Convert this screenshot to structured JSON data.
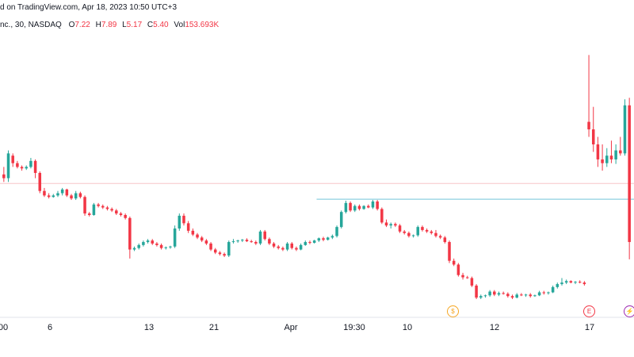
{
  "header": {
    "attribution": "d on TradingView.com, Apr 18, 2023 10:50 UTC+3",
    "symbol": "nc., 30, NASDAQ",
    "open_label": "O",
    "open": "7.22",
    "high_label": "H",
    "high": "7.89",
    "low_label": "L",
    "low": "5.17",
    "close_label": "C",
    "close": "5.40",
    "vol_label": "Vol",
    "volume": "153.693K"
  },
  "colors": {
    "up": "#26a69a",
    "down": "#f23645",
    "price_line": "#f7c5c9",
    "level_line": "#8ed0e0",
    "axis_border": "#e0e3eb"
  },
  "x_axis_labels": [
    "00",
    "6",
    "13",
    "21",
    "Apr",
    "19:30",
    "10",
    "12",
    "17"
  ],
  "events": [
    {
      "icon": "dollar-icon",
      "glyph": "$",
      "color": "#f5a623"
    },
    {
      "icon": "earnings-icon",
      "glyph": "E",
      "color": "#f23645"
    },
    {
      "icon": "lightning-icon",
      "glyph": "⚡",
      "color": "#9c27b0"
    }
  ],
  "chart_data": {
    "type": "candlestick",
    "candles": [
      [
        6.3,
        6.4,
        6.2,
        6.25
      ],
      [
        6.25,
        6.62,
        6.2,
        6.58
      ],
      [
        6.55,
        6.58,
        6.4,
        6.45
      ],
      [
        6.45,
        6.48,
        6.38,
        6.4
      ],
      [
        6.4,
        6.42,
        6.35,
        6.38
      ],
      [
        6.38,
        6.42,
        6.36,
        6.4
      ],
      [
        6.4,
        6.52,
        6.38,
        6.48
      ],
      [
        6.48,
        6.5,
        6.25,
        6.32
      ],
      [
        6.32,
        6.34,
        6.05,
        6.08
      ],
      [
        6.08,
        6.12,
        6.0,
        6.02
      ],
      [
        6.02,
        6.05,
        5.98,
        6.0
      ],
      [
        6.0,
        6.04,
        5.99,
        6.02
      ],
      [
        6.02,
        6.08,
        6.0,
        6.05
      ],
      [
        6.05,
        6.12,
        6.02,
        6.1
      ],
      [
        6.1,
        6.11,
        6.0,
        6.02
      ],
      [
        6.02,
        6.04,
        5.96,
        5.98
      ],
      [
        5.98,
        6.08,
        5.96,
        6.05
      ],
      [
        6.05,
        6.07,
        5.98,
        6.0
      ],
      [
        6.0,
        6.02,
        5.75,
        5.78
      ],
      [
        5.78,
        5.8,
        5.74,
        5.76
      ],
      [
        5.76,
        5.92,
        5.75,
        5.9
      ],
      [
        5.9,
        5.92,
        5.86,
        5.88
      ],
      [
        5.88,
        5.9,
        5.84,
        5.86
      ],
      [
        5.86,
        5.88,
        5.82,
        5.84
      ],
      [
        5.84,
        5.86,
        5.8,
        5.82
      ],
      [
        5.82,
        5.84,
        5.76,
        5.78
      ],
      [
        5.78,
        5.8,
        5.74,
        5.76
      ],
      [
        5.76,
        5.78,
        5.7,
        5.72
      ],
      [
        5.72,
        5.74,
        5.18,
        5.3
      ],
      [
        5.3,
        5.34,
        5.28,
        5.32
      ],
      [
        5.32,
        5.38,
        5.3,
        5.36
      ],
      [
        5.36,
        5.42,
        5.34,
        5.4
      ],
      [
        5.4,
        5.44,
        5.38,
        5.42
      ],
      [
        5.42,
        5.44,
        5.36,
        5.38
      ],
      [
        5.38,
        5.4,
        5.34,
        5.36
      ],
      [
        5.36,
        5.38,
        5.3,
        5.32
      ],
      [
        5.32,
        5.34,
        5.3,
        5.33
      ],
      [
        5.33,
        5.35,
        5.31,
        5.34
      ],
      [
        5.34,
        5.62,
        5.32,
        5.58
      ],
      [
        5.58,
        5.78,
        5.55,
        5.75
      ],
      [
        5.75,
        5.78,
        5.62,
        5.65
      ],
      [
        5.65,
        5.68,
        5.52,
        5.55
      ],
      [
        5.55,
        5.58,
        5.48,
        5.5
      ],
      [
        5.5,
        5.52,
        5.44,
        5.46
      ],
      [
        5.46,
        5.48,
        5.4,
        5.42
      ],
      [
        5.42,
        5.44,
        5.36,
        5.38
      ],
      [
        5.38,
        5.4,
        5.28,
        5.3
      ],
      [
        5.3,
        5.32,
        5.24,
        5.26
      ],
      [
        5.26,
        5.28,
        5.22,
        5.24
      ],
      [
        5.24,
        5.26,
        5.2,
        5.22
      ],
      [
        5.22,
        5.42,
        5.2,
        5.4
      ],
      [
        5.4,
        5.44,
        5.38,
        5.41
      ],
      [
        5.41,
        5.43,
        5.39,
        5.42
      ],
      [
        5.42,
        5.44,
        5.4,
        5.43
      ],
      [
        5.43,
        5.45,
        5.4,
        5.41
      ],
      [
        5.41,
        5.43,
        5.39,
        5.4
      ],
      [
        5.4,
        5.42,
        5.36,
        5.38
      ],
      [
        5.38,
        5.56,
        5.36,
        5.54
      ],
      [
        5.54,
        5.56,
        5.42,
        5.44
      ],
      [
        5.44,
        5.46,
        5.36,
        5.38
      ],
      [
        5.38,
        5.4,
        5.32,
        5.34
      ],
      [
        5.34,
        5.36,
        5.3,
        5.32
      ],
      [
        5.32,
        5.34,
        5.28,
        5.3
      ],
      [
        5.3,
        5.4,
        5.28,
        5.38
      ],
      [
        5.38,
        5.4,
        5.3,
        5.32
      ],
      [
        5.32,
        5.34,
        5.28,
        5.3
      ],
      [
        5.3,
        5.38,
        5.29,
        5.36
      ],
      [
        5.36,
        5.42,
        5.35,
        5.4
      ],
      [
        5.4,
        5.42,
        5.37,
        5.39
      ],
      [
        5.39,
        5.43,
        5.38,
        5.42
      ],
      [
        5.42,
        5.46,
        5.4,
        5.45
      ],
      [
        5.45,
        5.47,
        5.41,
        5.43
      ],
      [
        5.43,
        5.47,
        5.42,
        5.46
      ],
      [
        5.46,
        5.5,
        5.44,
        5.48
      ],
      [
        5.48,
        5.62,
        5.46,
        5.6
      ],
      [
        5.6,
        5.82,
        5.58,
        5.8
      ],
      [
        5.8,
        5.95,
        5.78,
        5.92
      ],
      [
        5.92,
        5.94,
        5.8,
        5.82
      ],
      [
        5.82,
        5.9,
        5.8,
        5.88
      ],
      [
        5.88,
        5.9,
        5.82,
        5.84
      ],
      [
        5.84,
        5.89,
        5.83,
        5.88
      ],
      [
        5.88,
        5.9,
        5.85,
        5.86
      ],
      [
        5.86,
        5.96,
        5.84,
        5.94
      ],
      [
        5.94,
        5.96,
        5.82,
        5.84
      ],
      [
        5.84,
        5.86,
        5.64,
        5.66
      ],
      [
        5.66,
        5.7,
        5.6,
        5.62
      ],
      [
        5.62,
        5.66,
        5.58,
        5.64
      ],
      [
        5.64,
        5.66,
        5.6,
        5.62
      ],
      [
        5.62,
        5.64,
        5.52,
        5.54
      ],
      [
        5.54,
        5.56,
        5.5,
        5.52
      ],
      [
        5.52,
        5.54,
        5.46,
        5.48
      ],
      [
        5.48,
        5.5,
        5.46,
        5.49
      ],
      [
        5.49,
        5.62,
        5.47,
        5.6
      ],
      [
        5.6,
        5.62,
        5.54,
        5.56
      ],
      [
        5.56,
        5.58,
        5.52,
        5.54
      ],
      [
        5.54,
        5.56,
        5.5,
        5.52
      ],
      [
        5.52,
        5.56,
        5.46,
        5.48
      ],
      [
        5.48,
        5.5,
        5.44,
        5.46
      ],
      [
        5.46,
        5.48,
        5.38,
        5.4
      ],
      [
        5.4,
        5.42,
        5.12,
        5.15
      ],
      [
        5.15,
        5.18,
        5.08,
        5.1
      ],
      [
        5.1,
        5.12,
        4.94,
        4.96
      ],
      [
        4.96,
        4.99,
        4.9,
        4.93
      ],
      [
        4.93,
        4.95,
        4.91,
        4.92
      ],
      [
        4.92,
        4.94,
        4.8,
        4.82
      ],
      [
        4.82,
        4.84,
        4.64,
        4.66
      ],
      [
        4.66,
        4.7,
        4.64,
        4.68
      ],
      [
        4.68,
        4.7,
        4.66,
        4.69
      ],
      [
        4.69,
        4.76,
        4.67,
        4.74
      ],
      [
        4.74,
        4.76,
        4.68,
        4.7
      ],
      [
        4.7,
        4.74,
        4.68,
        4.72
      ],
      [
        4.72,
        4.74,
        4.7,
        4.71
      ],
      [
        4.71,
        4.73,
        4.66,
        4.68
      ],
      [
        4.68,
        4.7,
        4.64,
        4.66
      ],
      [
        4.66,
        4.72,
        4.65,
        4.7
      ],
      [
        4.7,
        4.72,
        4.68,
        4.69
      ],
      [
        4.69,
        4.71,
        4.67,
        4.7
      ],
      [
        4.7,
        4.72,
        4.66,
        4.68
      ],
      [
        4.68,
        4.7,
        4.67,
        4.69
      ],
      [
        4.69,
        4.75,
        4.68,
        4.73
      ],
      [
        4.73,
        4.75,
        4.7,
        4.72
      ],
      [
        4.72,
        4.74,
        4.7,
        4.73
      ],
      [
        4.73,
        4.82,
        4.72,
        4.8
      ],
      [
        4.8,
        4.86,
        4.78,
        4.84
      ],
      [
        4.84,
        4.92,
        4.82,
        4.86
      ],
      [
        4.86,
        4.9,
        4.84,
        4.88
      ],
      [
        4.88,
        4.89,
        4.85,
        4.86
      ],
      [
        4.86,
        4.88,
        4.84,
        4.87
      ],
      [
        4.87,
        4.89,
        4.85,
        4.86
      ],
      [
        4.86,
        4.88,
        4.82,
        4.84
      ],
      [
        7.0,
        7.89,
        6.8,
        6.9
      ],
      [
        6.9,
        7.2,
        6.6,
        6.7
      ],
      [
        6.7,
        6.8,
        6.4,
        6.5
      ],
      [
        6.5,
        6.7,
        6.35,
        6.45
      ],
      [
        6.45,
        6.65,
        6.4,
        6.55
      ],
      [
        6.55,
        6.75,
        6.45,
        6.5
      ],
      [
        6.5,
        6.7,
        6.44,
        6.62
      ],
      [
        6.62,
        6.8,
        6.55,
        6.58
      ],
      [
        6.58,
        7.3,
        6.55,
        7.22
      ],
      [
        7.22,
        7.32,
        5.17,
        5.4
      ]
    ],
    "x_axis": [
      "00",
      "6",
      "13",
      "21",
      "Apr",
      "19:30",
      "10",
      "12",
      "17"
    ],
    "price_line": 6.18,
    "horizontal_level": 5.97,
    "grid": false
  }
}
